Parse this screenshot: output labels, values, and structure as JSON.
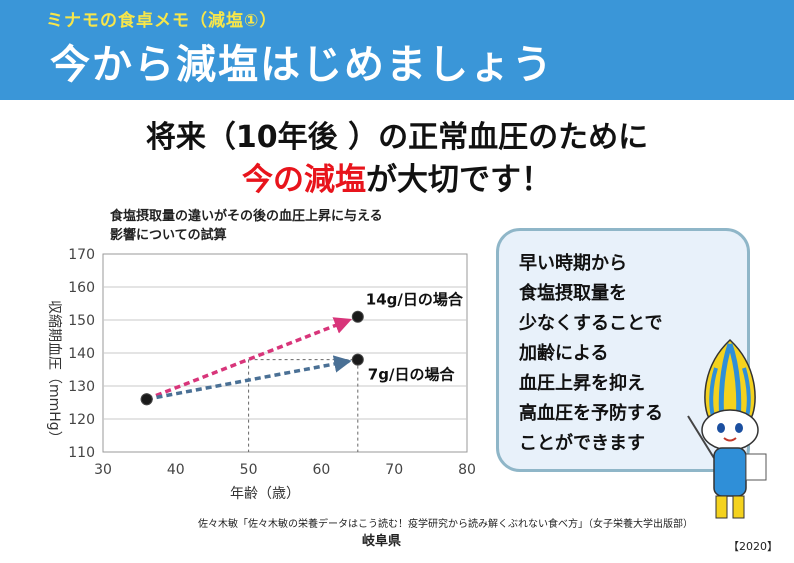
{
  "header": {
    "series_title": "ミナモの食卓メモ（減塩①）",
    "main_title": "今から減塩はじめましょう"
  },
  "headline": {
    "line1": "将来（10年後 ）の正常血圧のために",
    "line2_red": "今の減塩",
    "line2_rest": "が大切です！"
  },
  "chart_caption": {
    "line1": "食塩摂取量の違いがその後の血圧上昇に与える",
    "line2": "影響についての試算"
  },
  "chart_data": {
    "type": "line",
    "xlabel": "年齢（歳）",
    "ylabel": "収縮期血圧（mmHg）",
    "xlim": [
      30,
      80
    ],
    "ylim": [
      110,
      170
    ],
    "x_ticks": [
      "30",
      "40",
      "50",
      "60",
      "70",
      "80"
    ],
    "y_ticks": [
      "110",
      "120",
      "130",
      "140",
      "150",
      "160",
      "170"
    ],
    "grid": true,
    "series": [
      {
        "name": "14g/日の場合",
        "x": [
          36,
          65
        ],
        "y": [
          126,
          151
        ],
        "color": "#d8357a"
      },
      {
        "name": "7g/日の場合",
        "x": [
          36,
          65
        ],
        "y": [
          126,
          138
        ],
        "color": "#4a7095"
      }
    ],
    "reference_lines": {
      "x_at": [
        50,
        65
      ],
      "y_at": [
        138
      ]
    }
  },
  "message_box": {
    "lines": [
      "早い時期から",
      "食塩摂取量を",
      "少なくすることで",
      "加齢による",
      "血圧上昇を抑え",
      "高血圧を予防する",
      "ことができます"
    ]
  },
  "footer": {
    "source": "佐々木敏「佐々木敏の栄養データはこう読む！疫学研究から読み解くぶれない食べ方」（女子栄養大学出版部）",
    "org": "岐阜県",
    "year": "【2020】"
  },
  "mascot": {
    "icon": "minamo-mascot-icon"
  }
}
